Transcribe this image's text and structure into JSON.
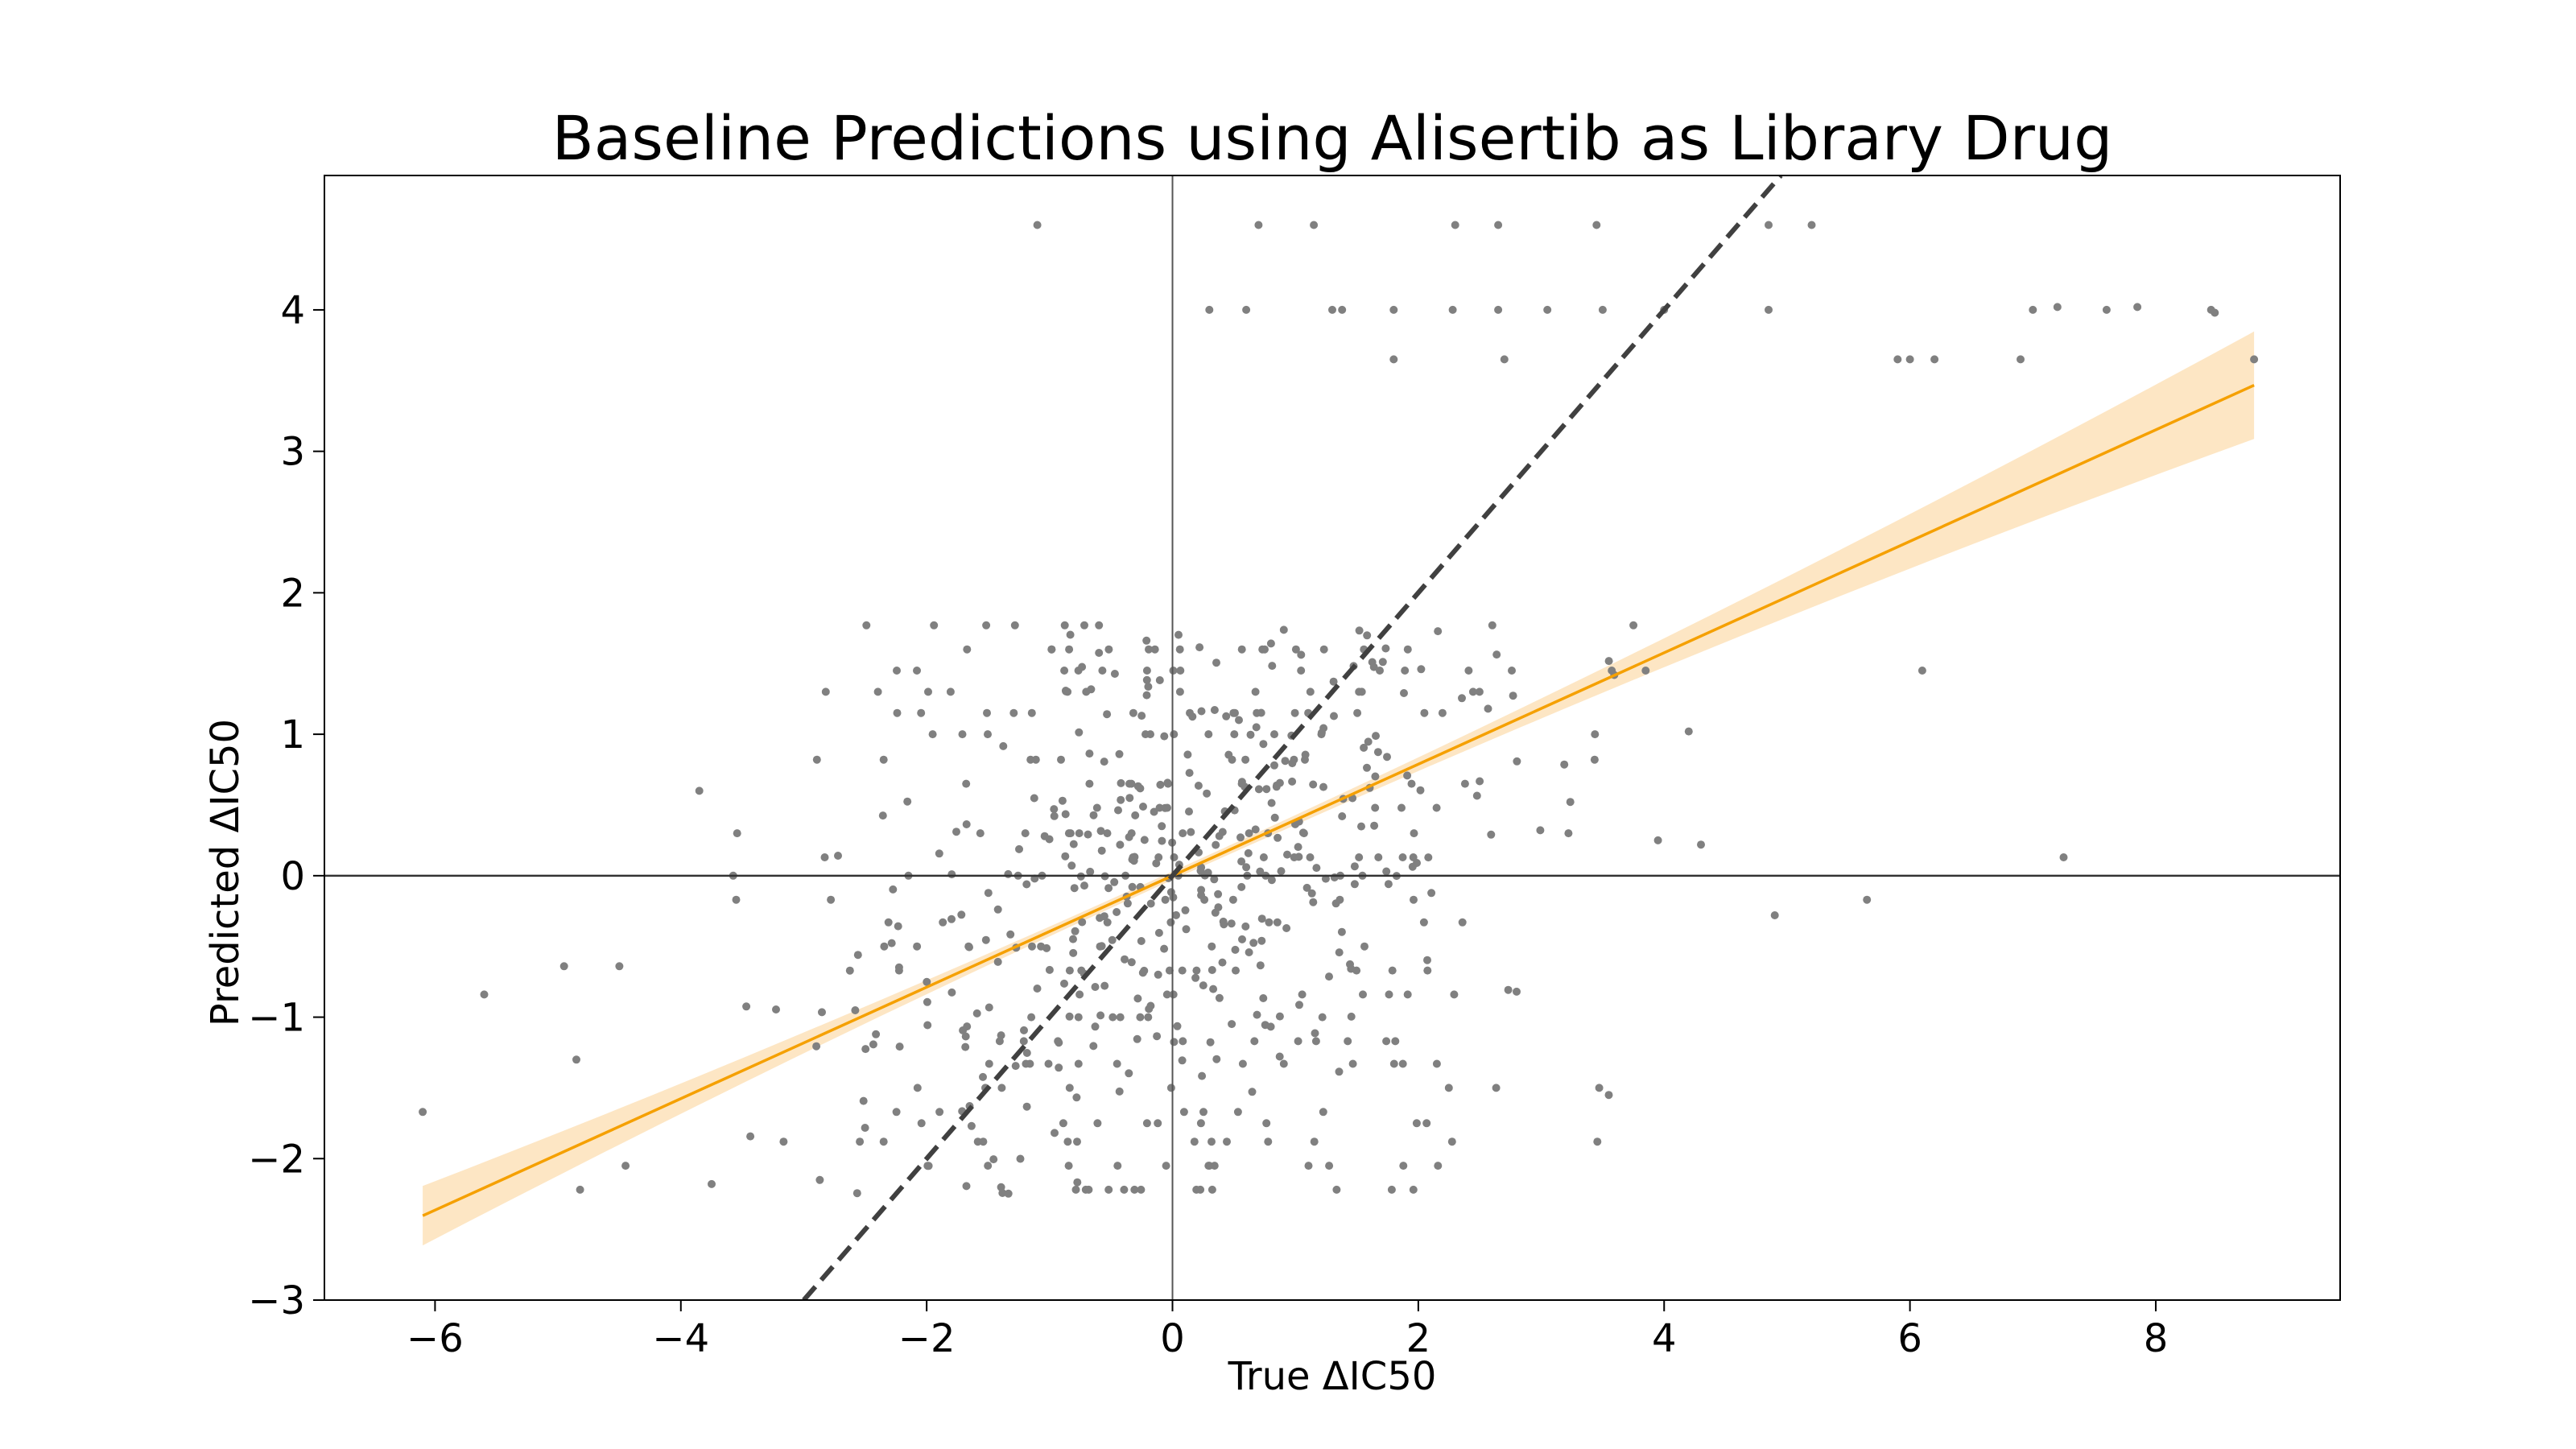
{
  "chart_data": {
    "type": "scatter",
    "title": "Baseline Predictions using Alisertib as Library Drug",
    "xlabel": "True ΔIC50",
    "ylabel": "Predicted ΔIC50",
    "xlim": [
      -6.9,
      9.5
    ],
    "ylim": [
      -3,
      4.95
    ],
    "xticks": [
      -6,
      -4,
      -2,
      0,
      2,
      4,
      6,
      8
    ],
    "yticks": [
      -3,
      -2,
      -1,
      0,
      1,
      2,
      3,
      4
    ],
    "xtick_labels": [
      "−6",
      "−4",
      "−2",
      "0",
      "2",
      "4",
      "6",
      "8"
    ],
    "ytick_labels": [
      "−3",
      "−2",
      "−1",
      "0",
      "1",
      "2",
      "3",
      "4"
    ],
    "grid": false,
    "reference_lines": {
      "x0": true,
      "y0": true,
      "identity_dashed": true
    },
    "fit": {
      "slope": 0.394,
      "intercept": 0.0,
      "x_range": [
        -6.1,
        8.8
      ],
      "ci_halfwidth_left": 0.21,
      "ci_halfwidth_center": 0.03,
      "ci_halfwidth_right": 0.38
    },
    "colors": {
      "points": "#808080",
      "fit_line": "#f5a000",
      "fit_band": "#fde6c4",
      "identity": "#404040",
      "axes": "#000000"
    },
    "outlier_points": [
      [
        -1.1,
        4.6
      ],
      [
        0.7,
        4.6
      ],
      [
        1.15,
        4.6
      ],
      [
        2.3,
        4.6
      ],
      [
        2.65,
        4.6
      ],
      [
        3.45,
        4.6
      ],
      [
        4.85,
        4.6
      ],
      [
        5.2,
        4.6
      ],
      [
        0.3,
        4.0
      ],
      [
        0.6,
        4.0
      ],
      [
        1.3,
        4.0
      ],
      [
        1.38,
        4.0
      ],
      [
        1.8,
        4.0
      ],
      [
        2.28,
        4.0
      ],
      [
        2.65,
        4.0
      ],
      [
        3.05,
        4.0
      ],
      [
        3.5,
        4.0
      ],
      [
        4.0,
        4.0
      ],
      [
        4.85,
        4.0
      ],
      [
        7.0,
        4.0
      ],
      [
        7.2,
        4.02
      ],
      [
        7.6,
        4.0
      ],
      [
        7.85,
        4.02
      ],
      [
        8.45,
        4.0
      ],
      [
        8.48,
        3.98
      ],
      [
        1.8,
        3.65
      ],
      [
        2.7,
        3.65
      ],
      [
        5.9,
        3.65
      ],
      [
        6.0,
        3.65
      ],
      [
        6.2,
        3.65
      ],
      [
        6.9,
        3.65
      ],
      [
        8.8,
        3.65
      ],
      [
        -6.1,
        -1.67
      ],
      [
        -5.6,
        -0.84
      ],
      [
        -4.95,
        -0.64
      ],
      [
        -4.85,
        -1.3
      ],
      [
        -4.82,
        -2.22
      ],
      [
        -4.5,
        -0.64
      ],
      [
        -4.45,
        -2.05
      ],
      [
        -3.85,
        0.6
      ],
      [
        -3.75,
        -2.18
      ],
      [
        -3.55,
        -0.17
      ],
      [
        4.2,
        1.02
      ],
      [
        4.3,
        0.22
      ],
      [
        4.9,
        -0.28
      ],
      [
        5.65,
        -0.17
      ],
      [
        6.1,
        1.45
      ],
      [
        7.25,
        0.13
      ],
      [
        3.55,
        -1.55
      ],
      [
        2.8,
        -0.82
      ],
      [
        3.75,
        1.77
      ],
      [
        3.85,
        1.45
      ],
      [
        3.95,
        0.25
      ]
    ]
  }
}
